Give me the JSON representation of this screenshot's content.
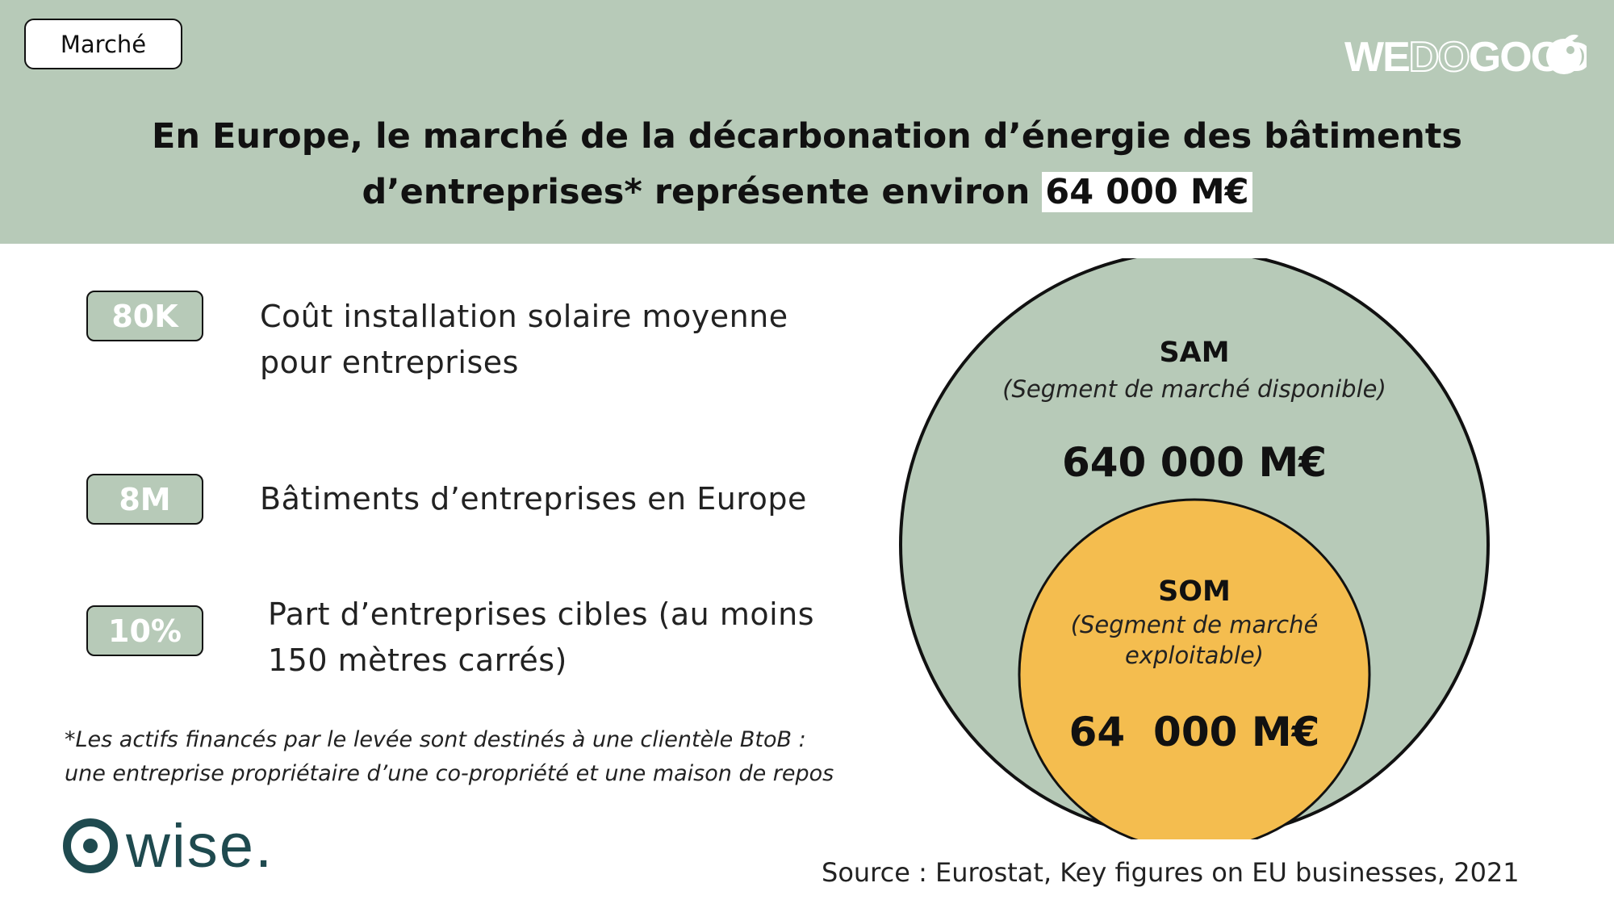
{
  "tag": "Marché",
  "brand": {
    "left": "WE",
    "middle": "DO",
    "right": "GOOD"
  },
  "title": {
    "line1": "En Europe, le marché de la décarbonation d’énergie des bâtiments",
    "line2_pre": "d’entreprises* représente environ ",
    "line2_highlight": "64 000 M€"
  },
  "stats": [
    {
      "value": "80K",
      "line1": "Coût installation solaire moyenne",
      "line2": "pour entreprises"
    },
    {
      "value": "8M",
      "line1": "Bâtiments d’entreprises en Europe",
      "line2": ""
    },
    {
      "value": "10%",
      "line1": "Part d’entreprises cibles (au moins",
      "line2": "150 mètres carrés)"
    }
  ],
  "footnote": {
    "line1": "*Les actifs financés par le levée sont destinés à une clientèle BtoB :",
    "line2": "une entreprise propriétaire d’une co-propriété et une maison de repos"
  },
  "sam": {
    "label": "SAM",
    "sub": "(Segment de marché disponible)",
    "value": "640 000 M€"
  },
  "som": {
    "label": "SOM",
    "sub1": "(Segment de marché",
    "sub2": "exploitable)",
    "value": "64  000 M€"
  },
  "wise": "wise.",
  "source": "Source : Eurostat, Key figures on EU businesses, 2021",
  "colors": {
    "header": "#b7cab8",
    "sam": "#b7cab8",
    "som": "#f4bd4f",
    "wise": "#1f4a4f"
  }
}
